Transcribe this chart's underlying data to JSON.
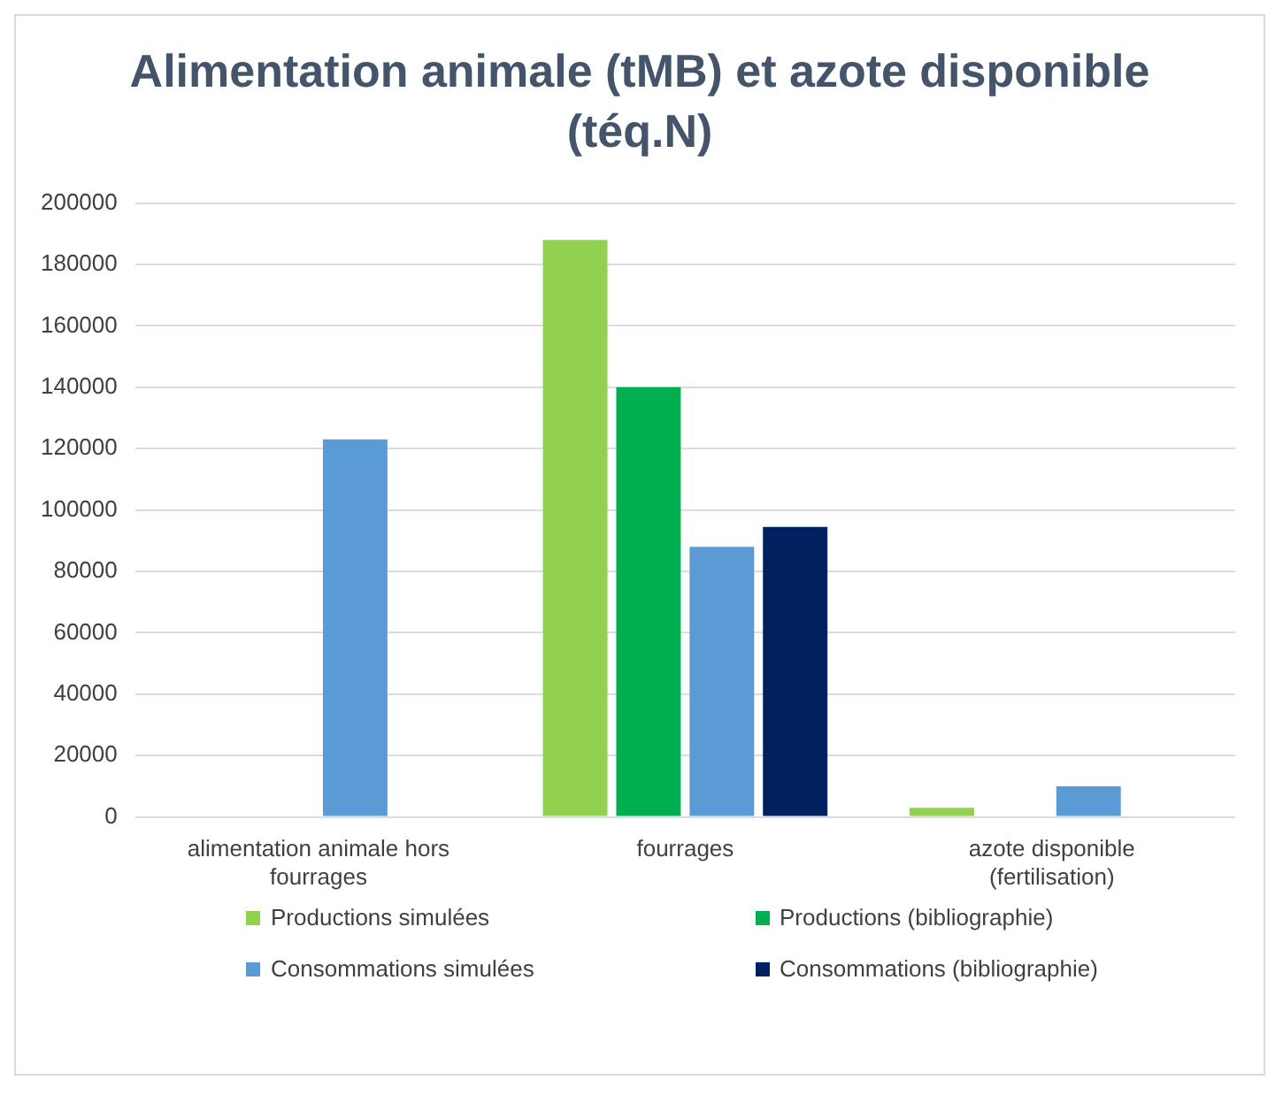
{
  "chart_data": {
    "type": "bar",
    "title": "Alimentation animale (tMB) et azote disponible (téq.N)",
    "categories": [
      "alimentation animale hors fourrages",
      "fourrages",
      "azote disponible (fertilisation)"
    ],
    "series": [
      {
        "name": "Productions simulées",
        "color": "#92d050",
        "values": [
          null,
          188000,
          3000
        ]
      },
      {
        "name": "Productions (bibliographie)",
        "color": "#00b050",
        "values": [
          null,
          140000,
          null
        ]
      },
      {
        "name": "Consommations simulées",
        "color": "#5b9bd5",
        "values": [
          123000,
          88000,
          10000
        ]
      },
      {
        "name": "Consommations (bibliographie)",
        "color": "#002060",
        "values": [
          null,
          94500,
          null
        ]
      }
    ],
    "ylim": [
      0,
      200000
    ],
    "yticks": [
      0,
      20000,
      40000,
      60000,
      80000,
      100000,
      120000,
      140000,
      160000,
      180000,
      200000
    ],
    "grid": "y",
    "legend": "bottom"
  }
}
